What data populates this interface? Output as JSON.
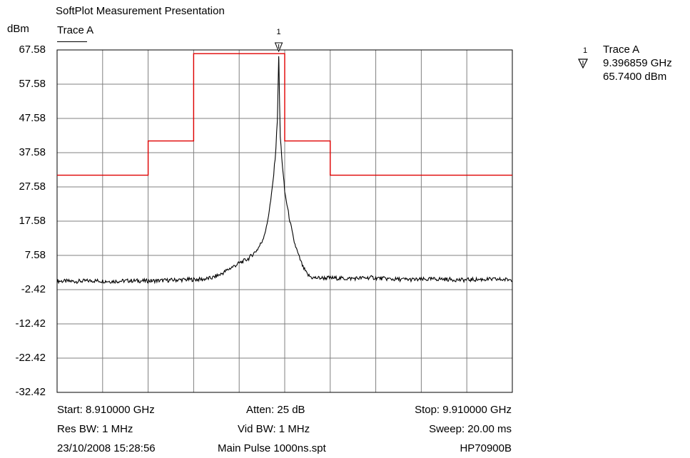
{
  "title": "SoftPlot Measurement Presentation",
  "ylabel": "dBm",
  "trace_label": "Trace A",
  "chart_data": {
    "type": "line",
    "title": "SoftPlot Measurement Presentation",
    "ylabel": "dBm",
    "xlim": [
      8.91,
      9.91
    ],
    "ylim": [
      -32.42,
      67.58
    ],
    "yticks": [
      "67.58",
      "57.58",
      "47.58",
      "37.58",
      "27.58",
      "17.58",
      "7.58",
      "-2.42",
      "-12.42",
      "-22.42",
      "-32.42"
    ],
    "grid": true,
    "x_divisions": 10,
    "series": [
      {
        "name": "Trace A",
        "color": "#000000",
        "x": [
          8.91,
          8.95,
          8.99,
          9.03,
          9.07,
          9.11,
          9.15,
          9.19,
          9.23,
          9.25,
          9.27,
          9.29,
          9.31,
          9.33,
          9.35,
          9.36,
          9.37,
          9.38,
          9.385,
          9.39,
          9.394,
          9.3969,
          9.4,
          9.405,
          9.41,
          9.42,
          9.43,
          9.44,
          9.45,
          9.46,
          9.47,
          9.48,
          9.51,
          9.55,
          9.6,
          9.65,
          9.7,
          9.75,
          9.8,
          9.85,
          9.91
        ],
        "y": [
          0.1,
          0.0,
          0.2,
          0.0,
          0.2,
          0.1,
          0.3,
          0.5,
          0.6,
          1.0,
          2.1,
          3.8,
          5.3,
          6.6,
          9.3,
          11.6,
          15.7,
          24.1,
          30.0,
          37.6,
          47.6,
          65.74,
          42.6,
          33.8,
          26.2,
          18.6,
          11.9,
          7.7,
          4.2,
          1.9,
          1.1,
          1.0,
          1.0,
          0.8,
          1.1,
          0.6,
          0.5,
          0.7,
          0.4,
          0.6,
          0.5
        ]
      },
      {
        "name": "Limit",
        "color": "#e00000",
        "x": [
          8.91,
          9.11,
          9.11,
          9.21,
          9.21,
          9.41,
          9.41,
          9.51,
          9.51,
          9.91
        ],
        "y": [
          31.0,
          31.0,
          41.0,
          41.0,
          66.5,
          66.5,
          41.0,
          41.0,
          31.0,
          31.0
        ]
      }
    ],
    "marker": {
      "number": "1",
      "x": 9.396859,
      "y": 65.74
    }
  },
  "legend": {
    "marker_number": "1",
    "trace": "Trace A",
    "freq": "9.396859 GHz",
    "level": "65.7400 dBm"
  },
  "footer": {
    "start": "Start: 8.910000 GHz",
    "atten": "Atten: 25 dB",
    "stop": "Stop: 9.910000 GHz",
    "res_bw": "Res BW: 1 MHz",
    "vid_bw": "Vid BW: 1 MHz",
    "sweep": "Sweep: 20.00 ms",
    "datetime": "23/10/2008 15:28:56",
    "file": "Main Pulse 1000ns.spt",
    "instrument": "HP70900B"
  }
}
